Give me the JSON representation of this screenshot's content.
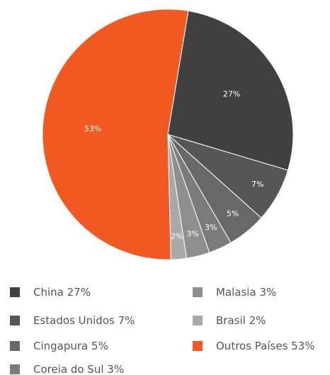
{
  "chart_data": {
    "type": "pie",
    "categories": [
      "China",
      "Estados Unidos",
      "Cingapura",
      "Coreia do Sul",
      "Malasia",
      "Brasil",
      "Outros Países"
    ],
    "values": [
      27,
      7,
      5,
      3,
      3,
      2,
      53
    ],
    "value_labels": [
      "27%",
      "7%",
      "5%",
      "3%",
      "3%",
      "2%",
      "53%"
    ],
    "colors": [
      "#404040",
      "#565656",
      "#686868",
      "#7b7b7b",
      "#8f8f8f",
      "#a9a9a9",
      "#f05a22"
    ],
    "legend": "bottom"
  }
}
